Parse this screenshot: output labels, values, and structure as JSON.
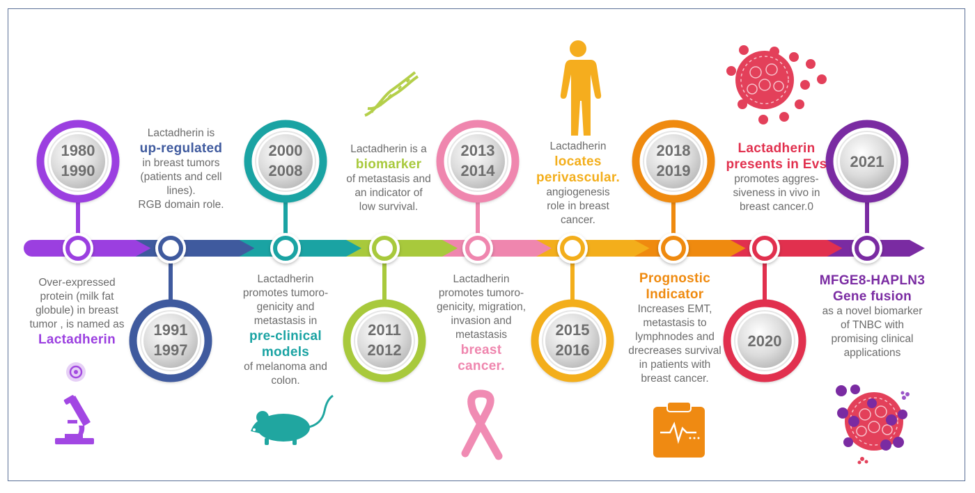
{
  "milestones": [
    {
      "years": [
        "1980",
        "1990"
      ],
      "color": "#9b3fe0",
      "text_before": [
        "Over-expressed",
        "protein  (milk  fat",
        "globule)  in  breast",
        "tumor , is named as"
      ],
      "highlight": [
        "Lactadherin"
      ],
      "text_after": []
    },
    {
      "years": [
        "1991",
        "1997"
      ],
      "color": "#3f5a9e",
      "text_before": [
        "Lactadherin is"
      ],
      "highlight": [
        "up-regulated"
      ],
      "text_after": [
        "in breast  tumors",
        "(patients  and cell",
        "lines).",
        "RGB domain role."
      ]
    },
    {
      "years": [
        "2000",
        "2008"
      ],
      "color": "#1aa3a3",
      "text_before": [
        "Lactadherin",
        "promotes tumoro-",
        "genicity and",
        "metastasis in"
      ],
      "highlight": [
        "pre-clinical",
        "models"
      ],
      "text_after": [
        "of melanoma and",
        "colon."
      ]
    },
    {
      "years": [
        "2011",
        "2012"
      ],
      "color": "#a8c93c",
      "text_before": [
        "Lactadherin is a"
      ],
      "highlight": [
        "biomarker"
      ],
      "text_after": [
        "of metastasis and",
        "an indicator of",
        "low survival."
      ]
    },
    {
      "years": [
        "2013",
        "2014"
      ],
      "color": "#ef86ae",
      "text_before": [
        "Lactadherin",
        "promotes tumoro-",
        "genicity,  migration,",
        "invasion and",
        "metastasis"
      ],
      "highlight": [
        "breast",
        "cancer."
      ],
      "text_after": []
    },
    {
      "years": [
        "2015",
        "2016"
      ],
      "color": "#f3ae1b",
      "text_before": [
        "Lactadherin"
      ],
      "highlight": [
        "locates",
        "perivascular."
      ],
      "text_after": [
        "angiogenesis",
        "role  in breast",
        "cancer."
      ]
    },
    {
      "years": [
        "2018",
        "2019"
      ],
      "color": "#ef8a0f",
      "text_before": [],
      "highlight": [
        "Prognostic",
        "Indicator"
      ],
      "text_after": [
        "Increases EMT,",
        "metastasis to",
        "lymphnodes  and",
        "drecreases survival",
        "in patients with",
        "breast cancer."
      ]
    },
    {
      "years": [
        "2020"
      ],
      "color": "#e1304e",
      "text_before": [],
      "highlight": [
        "Lactadherin",
        "presents in Evs"
      ],
      "text_after": [
        "promotes aggres-",
        "siveness in vivo in",
        "breast  cancer.0"
      ]
    },
    {
      "years": [
        "2021"
      ],
      "color": "#7a2ba2",
      "text_before": [],
      "highlight": [
        "MFGE8-HAPLN3",
        "Gene fusion"
      ],
      "text_after": [
        "as a novel biomarker",
        "of TNBC with",
        "promising clinical",
        "applications"
      ]
    }
  ],
  "icons": [
    "microscope-icon",
    "mouse-icon",
    "dna-icon",
    "pink-ribbon-icon",
    "human-body-icon",
    "clipboard-ecg-icon",
    "extracellular-vesicles-icon",
    "tumor-cell-icon"
  ]
}
